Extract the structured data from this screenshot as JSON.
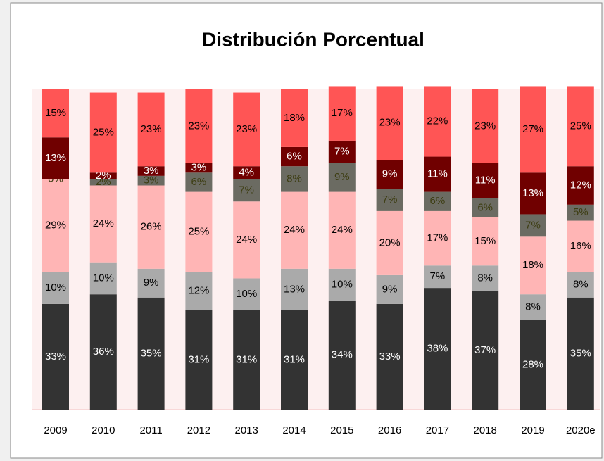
{
  "chart_data": {
    "type": "bar",
    "stacked": true,
    "title": "Distribución  Porcentual",
    "categories": [
      "2009",
      "2010",
      "2011",
      "2012",
      "2013",
      "2014",
      "2015",
      "2016",
      "2017",
      "2018",
      "2019",
      "2020e"
    ],
    "ylim": [
      0,
      100
    ],
    "series": [
      {
        "color": "#333333",
        "label_color": "#ffffff",
        "values": [
          33,
          36,
          35,
          31,
          31,
          31,
          34,
          33,
          38,
          37,
          28,
          35
        ],
        "value_labels": [
          "33%",
          "36%",
          "35%",
          "31%",
          "31%",
          "31%",
          "34%",
          "33%",
          "38%",
          "37%",
          "28%",
          "35%"
        ]
      },
      {
        "color": "#aaaaaa",
        "label_color": "#000000",
        "values": [
          10,
          10,
          9,
          12,
          10,
          13,
          10,
          9,
          7,
          8,
          8,
          8
        ],
        "value_labels": [
          "10%",
          "10%",
          "9%",
          "12%",
          "10%",
          "13%",
          "10%",
          "9%",
          "7%",
          "8%",
          "8%",
          "8%"
        ]
      },
      {
        "color": "#ffb5b5",
        "label_color": "#000000",
        "values": [
          29,
          24,
          26,
          25,
          24,
          24,
          24,
          20,
          17,
          15,
          18,
          16
        ],
        "value_labels": [
          "29%",
          "24%",
          "26%",
          "25%",
          "24%",
          "24%",
          "24%",
          "20%",
          "17%",
          "15%",
          "18%",
          "16%"
        ]
      },
      {
        "color": "#6b6b62",
        "label_color": "#3d3d12",
        "values": [
          0,
          2,
          3,
          6,
          7,
          8,
          9,
          7,
          6,
          6,
          7,
          5
        ],
        "value_labels": [
          "0%",
          "2%",
          "3%",
          "6%",
          "7%",
          "8%",
          "9%",
          "7%",
          "6%",
          "6%",
          "7%",
          "5%"
        ]
      },
      {
        "color": "#700000",
        "label_color": "#ffffff",
        "values": [
          13,
          2,
          3,
          3,
          4,
          6,
          7,
          9,
          11,
          11,
          13,
          12
        ],
        "value_labels": [
          "13%",
          "2%",
          "3%",
          "3%",
          "4%",
          "6%",
          "7%",
          "9%",
          "11%",
          "11%",
          "13%",
          "12%"
        ]
      },
      {
        "color": "#ff5555",
        "label_color": "#000000",
        "values": [
          15,
          25,
          23,
          23,
          23,
          18,
          17,
          23,
          22,
          23,
          27,
          25
        ],
        "value_labels": [
          "15%",
          "25%",
          "23%",
          "23%",
          "23%",
          "18%",
          "17%",
          "23%",
          "22%",
          "23%",
          "27%",
          "25%"
        ]
      }
    ]
  }
}
